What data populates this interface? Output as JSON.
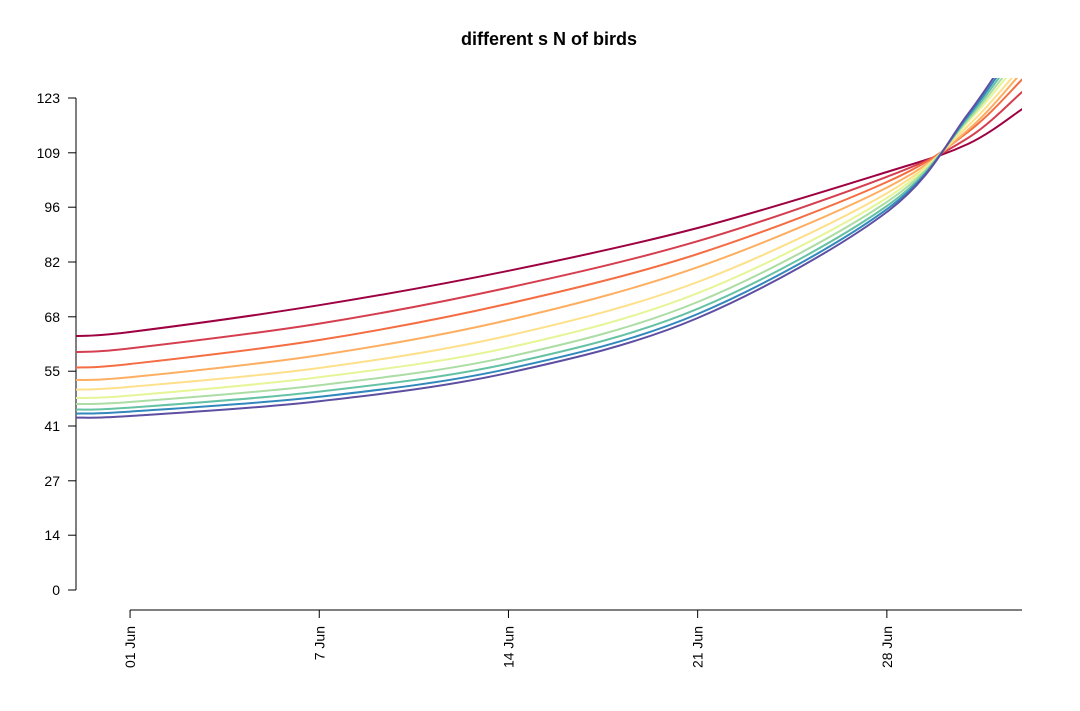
{
  "chart_data": {
    "type": "line",
    "title": "different s N of birds",
    "xlabel": "",
    "ylabel": "",
    "grid": false,
    "legend": "none",
    "y_ticks": [
      "0",
      "14",
      "27",
      "41",
      "55",
      "68",
      "82",
      "96",
      "109",
      "123"
    ],
    "y_tick_values": [
      0,
      13.7,
      27.3,
      41,
      54.7,
      68.3,
      82,
      95.7,
      109.3,
      123
    ],
    "x_ticks": [
      "01 Jun",
      "7 Jun",
      "14 Jun",
      "21 Jun",
      "28 Jun"
    ],
    "x_tick_values": [
      "2023-06-01",
      "2023-06-08",
      "2023-06-15",
      "2023-06-22",
      "2023-06-29"
    ],
    "xlim": [
      "2023-05-30",
      "2023-07-04"
    ],
    "ylim": [
      -2.5,
      128
    ],
    "x": [
      "2023-05-30",
      "2023-06-01",
      "2023-06-08",
      "2023-06-15",
      "2023-06-22",
      "2023-06-29",
      "2023-07-02",
      "2023-07-04"
    ],
    "series": [
      {
        "color": "#9E0142",
        "values": [
          63.5,
          64.5,
          71.2,
          79.8,
          90.5,
          104.5,
          111.5,
          120.2
        ]
      },
      {
        "color": "#D53E4F",
        "values": [
          59.5,
          60.4,
          66.6,
          75.6,
          87.2,
          103.3,
          113.0,
          124.5
        ]
      },
      {
        "color": "#F46D43",
        "values": [
          55.6,
          56.5,
          62.5,
          71.6,
          84.0,
          102.0,
          114.5,
          127.6
        ]
      },
      {
        "color": "#FDAE61",
        "values": [
          52.5,
          53.2,
          58.7,
          67.5,
          80.7,
          100.6,
          115.0,
          129.5
        ]
      },
      {
        "color": "#FEE08B",
        "values": [
          50.1,
          50.8,
          55.5,
          63.6,
          77.0,
          99.2,
          116.0,
          131.0
        ]
      },
      {
        "color": "#E6F598",
        "values": [
          48.0,
          48.6,
          53.2,
          60.6,
          74.2,
          98.0,
          117.0,
          133.0
        ]
      },
      {
        "color": "#ABDDA4",
        "values": [
          46.5,
          47.0,
          51.2,
          58.3,
          72.0,
          97.0,
          117.5,
          134.5
        ]
      },
      {
        "color": "#66C2A5",
        "values": [
          45.1,
          45.6,
          49.6,
          56.6,
          70.3,
          96.0,
          118.0,
          136.0
        ]
      },
      {
        "color": "#3288BD",
        "values": [
          44.1,
          44.6,
          48.3,
          55.3,
          69.0,
          95.2,
          118.5,
          137.5
        ]
      },
      {
        "color": "#5E4FA2",
        "values": [
          43.1,
          43.5,
          47.2,
          54.3,
          68.0,
          94.5,
          119.0,
          139.0
        ]
      }
    ]
  }
}
